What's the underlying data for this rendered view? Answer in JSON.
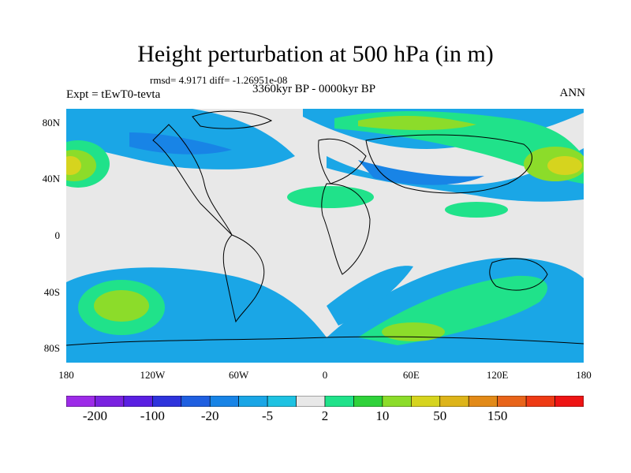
{
  "header": {
    "title": "Height perturbation at 500 hPa (in m)",
    "stats": "rmsd= 4.9171 diff= -1.26951e-08",
    "experiment": "Expt = tEwT0-tevta",
    "period": "3360kyr BP - 0000kyr BP",
    "season": "ANN"
  },
  "lat_ticks": [
    "80N",
    "40N",
    "0",
    "40S",
    "80S"
  ],
  "lat_tick_values": [
    80,
    40,
    0,
    -40,
    -80
  ],
  "lon_ticks": [
    "180",
    "120W",
    "60W",
    "0",
    "60E",
    "120E",
    "180"
  ],
  "lon_tick_values": [
    -180,
    -120,
    -60,
    0,
    60,
    120,
    180
  ],
  "colorbar": {
    "labels": [
      "-200",
      "-100",
      "-20",
      "-5",
      "2",
      "10",
      "50",
      "150"
    ],
    "label_slots": [
      1,
      3,
      5,
      7,
      9,
      11,
      13,
      15
    ],
    "colors": [
      "#9d2be8",
      "#7a22e0",
      "#5a1fe2",
      "#2e33dc",
      "#1f5fe0",
      "#1884e6",
      "#1aa6e6",
      "#1ec2e2",
      "#e8e8e8",
      "#20e28a",
      "#2fd23a",
      "#8cdc2a",
      "#d6d41e",
      "#ddb41a",
      "#e28a18",
      "#e8641a",
      "#ee3a14",
      "#ee1414"
    ]
  },
  "map": {
    "lon_range": [
      -180,
      180
    ],
    "lat_range": [
      -90,
      90
    ],
    "land_outline": "coastlines"
  }
}
